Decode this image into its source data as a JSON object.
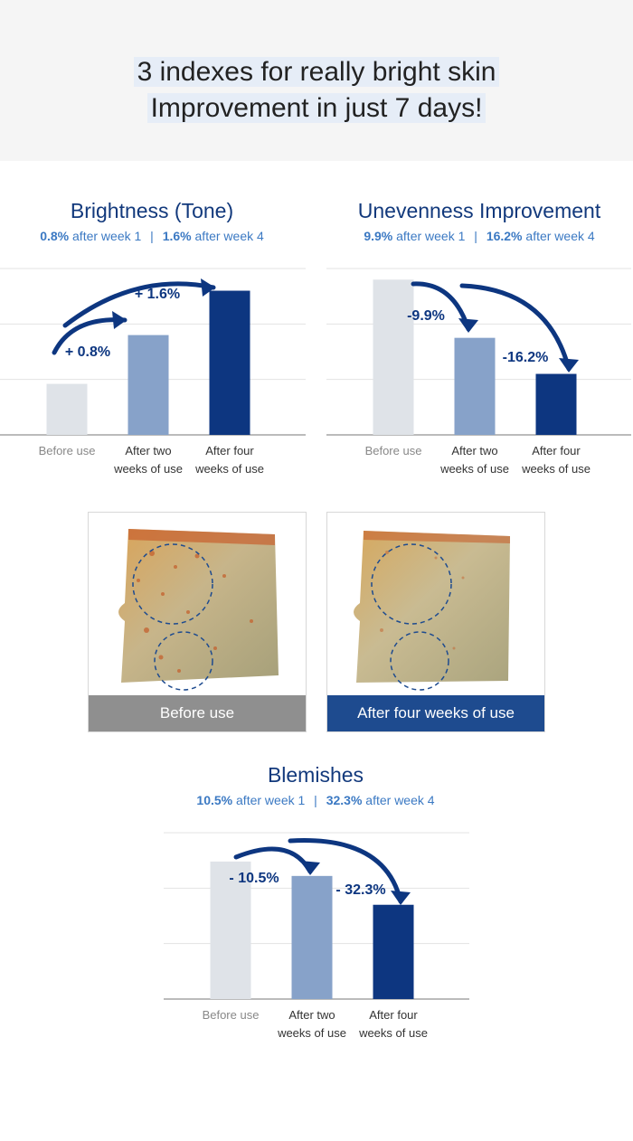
{
  "hero": {
    "line1": "3 indexes for really bright skin",
    "line2": "Improvement in just 7 days!"
  },
  "sections": {
    "brightness": {
      "title": "Brightness (Tone)",
      "w1_value": "0.8%",
      "w1_text": "after week 1",
      "w4_value": "1.6%",
      "w4_text": "after week 4",
      "separator": "|"
    },
    "unevenness": {
      "title": "Unevenness Improvement",
      "w1_value": "9.9%",
      "w1_text": "after week 1",
      "w4_value": "16.2%",
      "w4_text": "after week 4",
      "separator": "|"
    },
    "blemishes": {
      "title": "Blemishes",
      "w1_value": "10.5%",
      "w1_text": "after week 1",
      "w4_value": "32.3%",
      "w4_text": "after week 4",
      "separator": "|"
    }
  },
  "photos": {
    "before_label": "Before use",
    "after_label": "After four weeks of use"
  },
  "colors": {
    "before_bar": "#dfe3e8",
    "two_week_bar": "#87a2c9",
    "four_week_bar": "#0d3680",
    "arrow": "#0d3680",
    "title": "#12397c",
    "subtitle": "#3b79c3"
  },
  "chart_data": [
    {
      "type": "bar",
      "categories": [
        "Before use",
        "After two\nweeks of use",
        "After four\nweeks of use"
      ],
      "values": [
        0.92,
        1.8,
        2.6
      ],
      "annotations": [
        "+ 0.8%",
        "+ 1.6%"
      ],
      "grid": true,
      "ylim": [
        0,
        3
      ]
    },
    {
      "type": "bar",
      "categories": [
        "Before use",
        "After two\nweeks of use",
        "After four\nweeks of use"
      ],
      "values": [
        2.8,
        1.75,
        1.1
      ],
      "annotations": [
        "-9.9%",
        "-16.2%"
      ],
      "grid": true,
      "ylim": [
        0,
        3
      ]
    },
    {
      "type": "bar",
      "categories": [
        "Before use",
        "After two\nweeks of use",
        "After four\nweeks of use"
      ],
      "values": [
        2.48,
        2.22,
        1.7
      ],
      "annotations": [
        "- 10.5%",
        "- 32.3%"
      ],
      "grid": true,
      "ylim": [
        0,
        3
      ]
    }
  ]
}
